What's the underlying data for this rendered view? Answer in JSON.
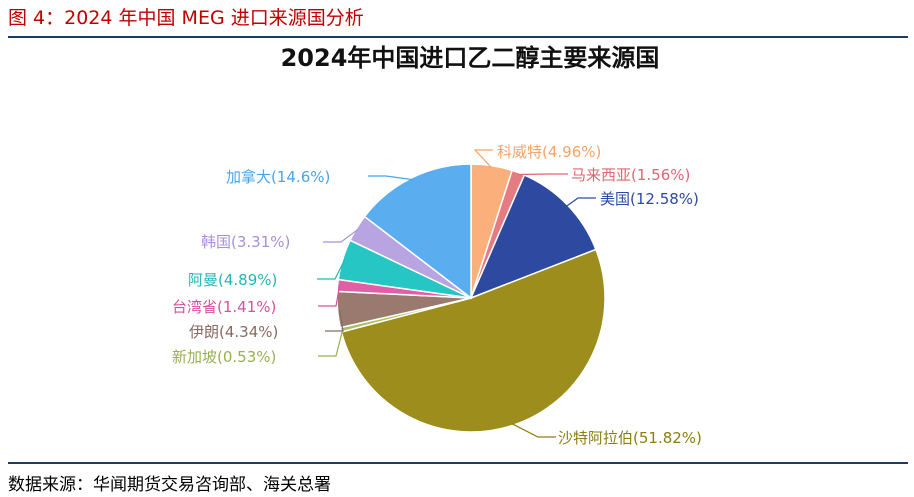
{
  "caption": "图 4：2024 年中国 MEG 进口来源国分析",
  "source": "数据来源：华闻期货交易咨询部、海关总署",
  "chart_data": {
    "type": "pie",
    "title": "2024年中国进口乙二醇主要来源国",
    "slices": [
      {
        "label": "科威特",
        "value": 4.96,
        "display": "(4.96%)",
        "color": "#fbb07c"
      },
      {
        "label": "马来西亚",
        "value": 1.56,
        "display": "(1.56%)",
        "color": "#e57c84"
      },
      {
        "label": "美国",
        "value": 12.58,
        "display": "(12.58%)",
        "color": "#2d4aa0"
      },
      {
        "label": "沙特阿拉伯",
        "value": 51.82,
        "display": "(51.82%)",
        "color": "#9c8d1c"
      },
      {
        "label": "新加坡",
        "value": 0.53,
        "display": "(0.53%)",
        "color": "#a8c060"
      },
      {
        "label": "伊朗",
        "value": 4.34,
        "display": "(4.34%)",
        "color": "#9a7a6e"
      },
      {
        "label": "台湾省",
        "value": 1.41,
        "display": "(1.41%)",
        "color": "#e060a8"
      },
      {
        "label": "阿曼",
        "value": 4.89,
        "display": "(4.89%)",
        "color": "#26c6c4"
      },
      {
        "label": "韩国",
        "value": 3.31,
        "display": "(3.31%)",
        "color": "#b8a4e0"
      },
      {
        "label": "加拿大",
        "value": 14.6,
        "display": "(14.6%)",
        "color": "#5aaef0"
      }
    ],
    "label_colors": [
      "#f5a366",
      "#e06670",
      "#2d4aa0",
      "#8c7e10",
      "#98b050",
      "#8a6a60",
      "#d850a0",
      "#20b8b6",
      "#a890d8",
      "#4aa4ec"
    ]
  }
}
